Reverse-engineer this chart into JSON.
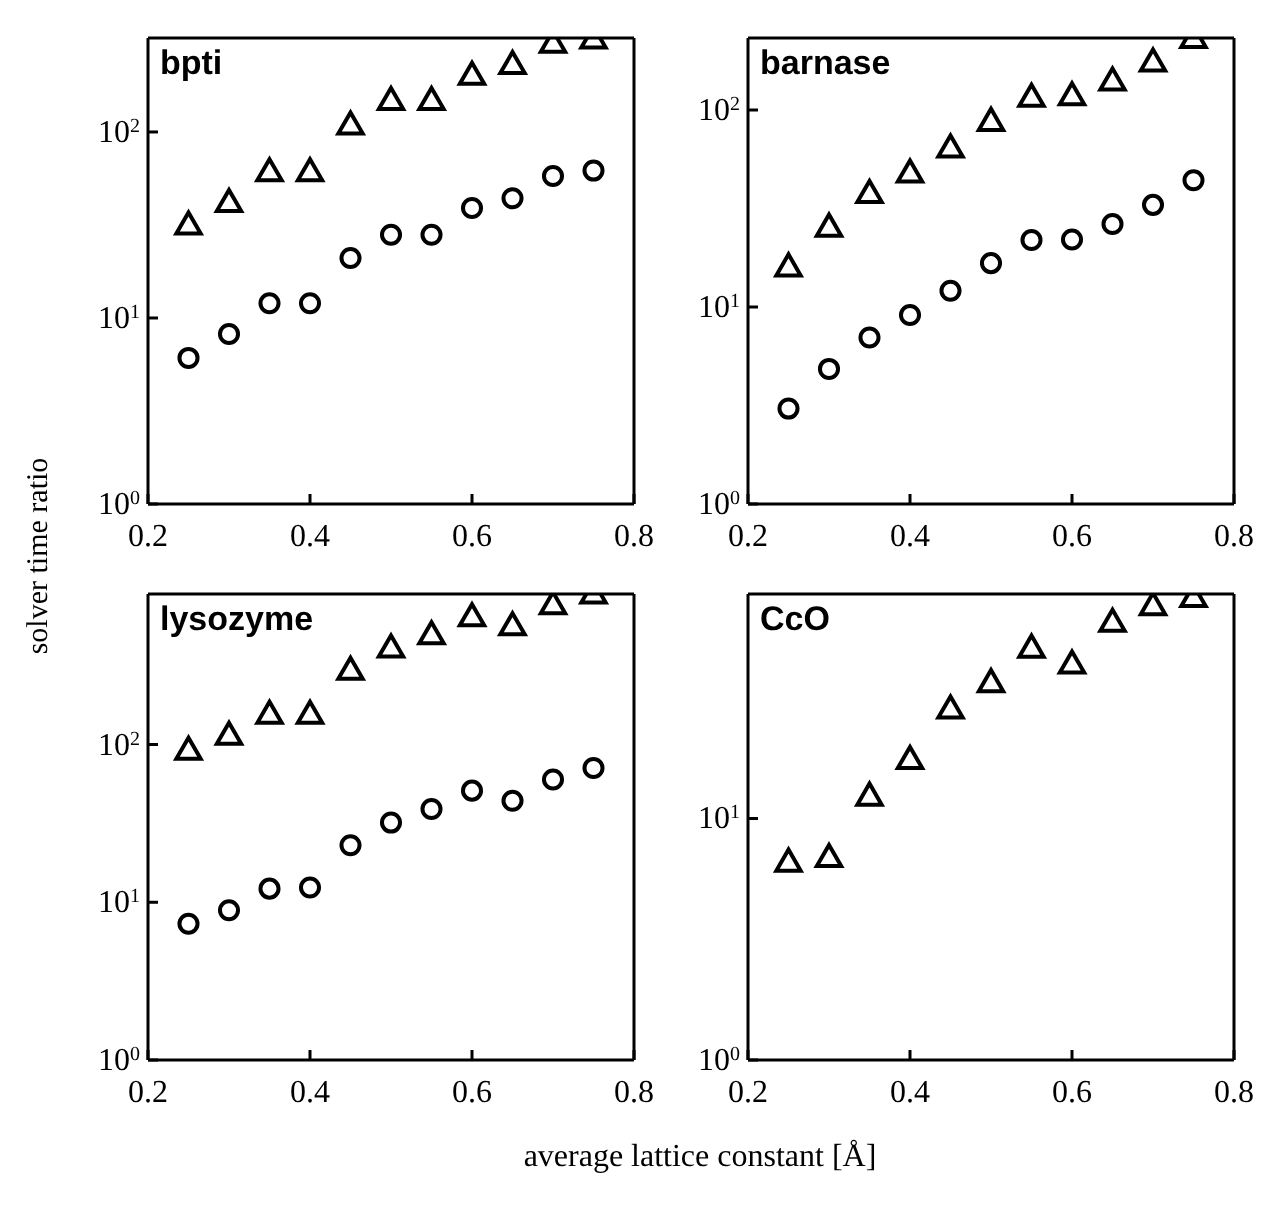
{
  "chart_data": [
    {
      "type": "scatter",
      "title": "bpti",
      "ylabel": "solver time ratio",
      "log": true,
      "x": [
        0.25,
        0.3,
        0.35,
        0.4,
        0.45,
        0.5,
        0.55,
        0.6,
        0.65,
        0.7,
        0.75
      ],
      "xlim": [
        0.2,
        0.8
      ],
      "xticks": [
        0.2,
        0.4,
        0.6,
        0.8
      ],
      "ylim": [
        1,
        320
      ],
      "yticks": [
        {
          "value": 1,
          "label": "10$^{0}$"
        },
        {
          "value": 10,
          "label": "10$^{1}$"
        },
        {
          "value": 100,
          "label": "10$^{2}$"
        }
      ],
      "legend": false,
      "series": [
        {
          "marker": "triangle",
          "color": "#000000",
          "values": [
            31,
            41,
            60,
            60,
            107,
            145,
            145,
            198,
            226,
            294,
            310
          ]
        },
        {
          "marker": "circle",
          "color": "#000000",
          "values": [
            6.1,
            8.2,
            12,
            12,
            21,
            28,
            28,
            39,
            44,
            58,
            62
          ]
        }
      ]
    },
    {
      "type": "scatter",
      "title": "barnase",
      "log": true,
      "x": [
        0.25,
        0.3,
        0.35,
        0.4,
        0.45,
        0.5,
        0.55,
        0.6,
        0.65,
        0.7,
        0.75
      ],
      "xlim": [
        0.2,
        0.8
      ],
      "xticks": [
        0.2,
        0.4,
        0.6,
        0.8
      ],
      "ylim": [
        1,
        232
      ],
      "yticks": [
        {
          "value": 1,
          "label": "10$^{0}$"
        },
        {
          "value": 10,
          "label": "10$^{1}$"
        },
        {
          "value": 100,
          "label": "10$^{2}$"
        }
      ],
      "legend": false,
      "series": [
        {
          "marker": "triangle",
          "color": "#000000",
          "values": [
            15.7,
            25,
            37,
            47,
            63,
            86,
            114,
            116,
            138,
            172,
            227
          ]
        },
        {
          "marker": "circle",
          "color": "#000000",
          "values": [
            3.05,
            4.85,
            7,
            9.1,
            12.1,
            16.7,
            21.9,
            22,
            26.4,
            33,
            44
          ]
        }
      ]
    },
    {
      "type": "scatter",
      "title": "lysozyme",
      "xlabel": "average lattice constant [Å]",
      "log": true,
      "x": [
        0.25,
        0.3,
        0.35,
        0.4,
        0.45,
        0.5,
        0.55,
        0.6,
        0.65,
        0.7,
        0.75
      ],
      "xlim": [
        0.2,
        0.8
      ],
      "xticks": [
        0.2,
        0.4,
        0.6,
        0.8
      ],
      "ylim": [
        1,
        900
      ],
      "yticks": [
        {
          "value": 1,
          "label": "10$^{0}$"
        },
        {
          "value": 10,
          "label": "10$^{1}$"
        },
        {
          "value": 100,
          "label": "10$^{2}$"
        }
      ],
      "legend": false,
      "series": [
        {
          "marker": "triangle",
          "color": "#000000",
          "values": [
            90,
            112,
            152,
            152,
            289,
            400,
            486,
            631,
            554,
            753,
            880
          ]
        },
        {
          "marker": "circle",
          "color": "#000000",
          "values": [
            7.3,
            8.9,
            12.2,
            12.4,
            23,
            32,
            39,
            51,
            44,
            60,
            71
          ]
        }
      ]
    },
    {
      "type": "scatter",
      "title": "CcO",
      "log": true,
      "x": [
        0.25,
        0.3,
        0.35,
        0.4,
        0.45,
        0.5,
        0.55,
        0.6,
        0.65,
        0.7,
        0.75
      ],
      "xlim": [
        0.2,
        0.8
      ],
      "xticks": [
        0.2,
        0.4,
        0.6,
        0.8
      ],
      "ylim": [
        1,
        85
      ],
      "yticks": [
        {
          "value": 1,
          "label": "10$^{0}$"
        },
        {
          "value": 10,
          "label": "10$^{1}$"
        }
      ],
      "legend": false,
      "series": [
        {
          "marker": "triangle",
          "color": "#000000",
          "values": [
            6.5,
            6.8,
            12.2,
            17.3,
            28,
            36,
            50,
            43,
            64,
            75,
            81
          ]
        }
      ]
    }
  ]
}
